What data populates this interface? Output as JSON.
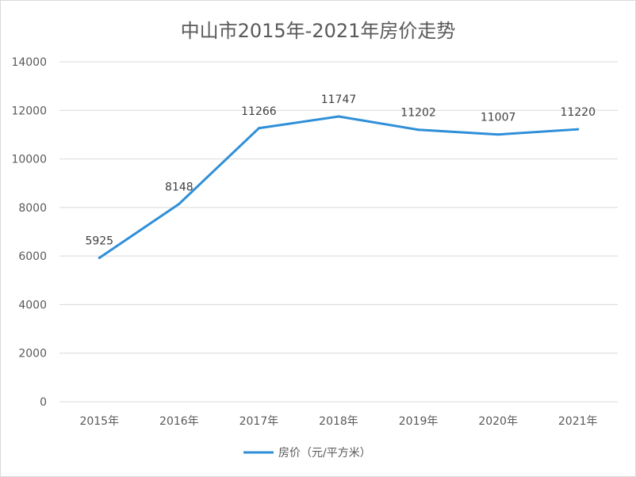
{
  "chart_data": {
    "type": "line",
    "title": "中山市2015年-2021年房价走势",
    "xlabel": "",
    "ylabel": "",
    "categories": [
      "2015年",
      "2016年",
      "2017年",
      "2018年",
      "2019年",
      "2020年",
      "2021年"
    ],
    "series": [
      {
        "name": "房价（元/平方米）",
        "values": [
          5925,
          8148,
          11266,
          11747,
          11202,
          11007,
          11220
        ],
        "color": "#2E8FD8"
      }
    ],
    "data_labels": [
      "5925",
      "8148",
      "11266",
      "11747",
      "11202",
      "11007",
      "11220"
    ],
    "ylim": [
      0,
      14000
    ],
    "yticks": [
      0,
      2000,
      4000,
      6000,
      8000,
      10000,
      12000,
      14000
    ],
    "ytick_labels": [
      "0",
      "2000",
      "4000",
      "6000",
      "8000",
      "10000",
      "12000",
      "14000"
    ],
    "grid": true,
    "legend_position": "bottom"
  }
}
